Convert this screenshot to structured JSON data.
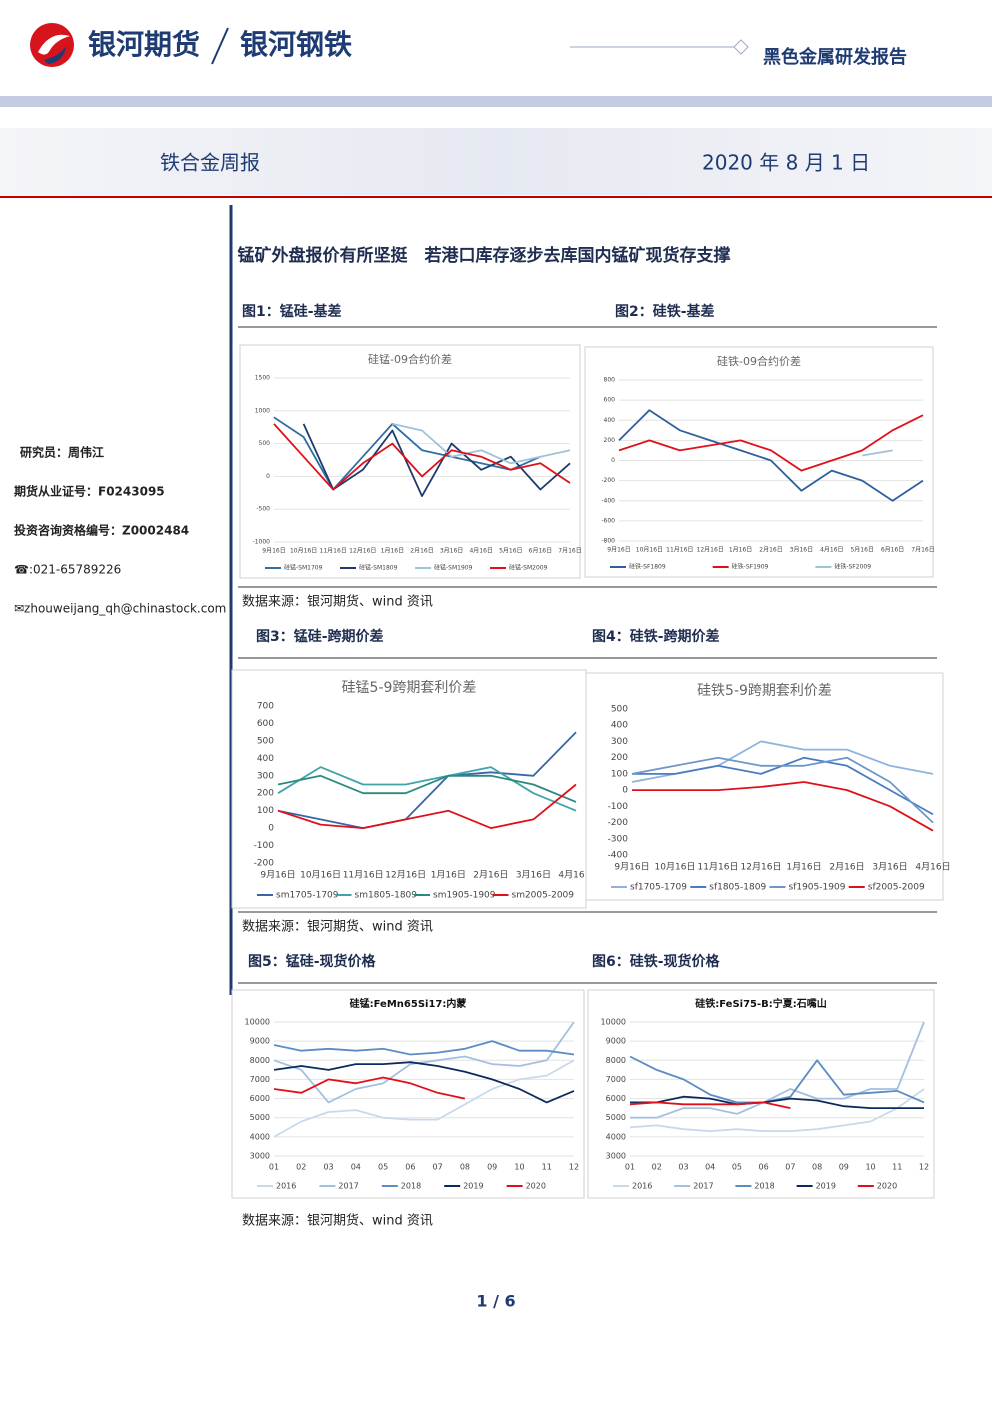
{
  "header": {
    "brand": "银河期货",
    "sub_brand": "银河钢铁",
    "report": "黑色金属研发报告",
    "title": "铁合金周报",
    "date": "2020 年 8 月 1 日"
  },
  "sidebar": [
    "研究员：周伟江",
    "期货从业证号：F0243095",
    "投资咨询资格编号：Z0002484",
    "☎:021-65789226",
    "✉zhouweijang_qh@chinastock.com"
  ],
  "headline": "锰矿外盘报价有所坚挺　若港口库存逐步去库国内锰矿现货存支撑",
  "figures": [
    {
      "caption": "图1：锰硅-基差",
      "chart": {
        "type": "line",
        "title": "硅锰-09合约价差",
        "grid": true,
        "categories": [
          "9月16日",
          "10月16日",
          "11月16日",
          "12月16日",
          "1月16日",
          "2月16日",
          "3月16日",
          "4月16日",
          "5月16日",
          "6月16日",
          "7月16日"
        ],
        "ylim": [
          -1000,
          1500
        ],
        "yticks": [
          -1000,
          -500,
          0,
          500,
          1000,
          1500
        ],
        "series": [
          {
            "name": "硅锰-SM1709",
            "color": "#2f6ea5",
            "values": [
              900,
              600,
              -200,
              300,
              800,
              400,
              300,
              200,
              100,
              300,
              null
            ]
          },
          {
            "name": "硅锰-SM1809",
            "color": "#1f3b6e",
            "values": [
              null,
              800,
              -200,
              100,
              700,
              -300,
              500,
              100,
              300,
              -200,
              200
            ]
          },
          {
            "name": "硅锰-SM1909",
            "color": "#9dc3d8",
            "values": [
              null,
              null,
              null,
              null,
              800,
              700,
              300,
              400,
              200,
              300,
              400
            ]
          },
          {
            "name": "硅锰-SM2009",
            "color": "#e0101a",
            "values": [
              800,
              300,
              -200,
              200,
              500,
              0,
              400,
              300,
              100,
              200,
              -100
            ]
          }
        ]
      }
    },
    {
      "caption": "图2：硅铁-基差",
      "chart": {
        "type": "line",
        "title": "硅铁-09合约价差",
        "grid": true,
        "categories": [
          "9月16日",
          "10月16日",
          "11月16日",
          "12月16日",
          "1月16日",
          "2月16日",
          "3月16日",
          "4月16日",
          "5月16日",
          "6月16日",
          "7月16日"
        ],
        "ylim": [
          -800,
          800
        ],
        "yticks": [
          -800,
          -600,
          -400,
          -200,
          0,
          200,
          400,
          600,
          800
        ],
        "series": [
          {
            "name": "硅铁-SF1809",
            "color": "#2f5f9e",
            "values": [
              200,
              500,
              300,
              200,
              100,
              0,
              -300,
              -100,
              -200,
              -400,
              -200
            ]
          },
          {
            "name": "硅铁-SF1909",
            "color": "#e0101a",
            "values": [
              100,
              200,
              100,
              150,
              200,
              100,
              -100,
              0,
              100,
              300,
              450
            ]
          },
          {
            "name": "硅铁-SF2009",
            "color": "#9dc3d8",
            "values": [
              null,
              null,
              null,
              null,
              null,
              null,
              null,
              null,
              50,
              100,
              null
            ]
          }
        ]
      }
    },
    {
      "caption": "图3：锰硅-跨期价差",
      "chart": {
        "type": "line",
        "title": "硅锰5-9跨期套利价差",
        "grid": false,
        "categories": [
          "9月16日",
          "10月16日",
          "11月16日",
          "12月16日",
          "1月16日",
          "2月16日",
          "3月16日",
          "4月16日"
        ],
        "ylim": [
          -200,
          700
        ],
        "yticks": [
          -200,
          -100,
          0,
          100,
          200,
          300,
          400,
          500,
          600,
          700
        ],
        "series": [
          {
            "name": "sm1705-1709",
            "color": "#3866a8",
            "values": [
              100,
              50,
              0,
              50,
              300,
              320,
              300,
              550
            ]
          },
          {
            "name": "sm1805-1809",
            "color": "#3fa3a8",
            "values": [
              200,
              350,
              250,
              250,
              300,
              350,
              200,
              100
            ]
          },
          {
            "name": "sm1905-1909",
            "color": "#2b8a7d",
            "values": [
              250,
              300,
              200,
              200,
              300,
              300,
              250,
              150
            ]
          },
          {
            "name": "sm2005-2009",
            "color": "#e0101a",
            "values": [
              100,
              20,
              0,
              50,
              100,
              0,
              50,
              250
            ]
          }
        ]
      }
    },
    {
      "caption": "图4：硅铁-跨期价差",
      "chart": {
        "type": "line",
        "title": "硅铁5-9跨期套利价差",
        "grid": false,
        "categories": [
          "9月16日",
          "10月16日",
          "11月16日",
          "12月16日",
          "1月16日",
          "2月16日",
          "3月16日",
          "4月16日"
        ],
        "ylim": [
          -400,
          500
        ],
        "yticks": [
          -400,
          -300,
          -200,
          -100,
          0,
          100,
          200,
          300,
          400,
          500
        ],
        "series": [
          {
            "name": "sf1705-1709",
            "color": "#8fb3dd",
            "values": [
              50,
              100,
              150,
              300,
              250,
              250,
              150,
              100
            ]
          },
          {
            "name": "sf1805-1809",
            "color": "#4a7cc0",
            "values": [
              100,
              100,
              150,
              100,
              200,
              150,
              0,
              -150
            ]
          },
          {
            "name": "sf1905-1909",
            "color": "#6d97c9",
            "values": [
              100,
              150,
              200,
              150,
              150,
              200,
              50,
              -200
            ]
          },
          {
            "name": "sf2005-2009",
            "color": "#e0101a",
            "values": [
              0,
              0,
              0,
              20,
              50,
              0,
              -100,
              -250
            ]
          }
        ]
      }
    },
    {
      "caption": "图5：锰硅-现货价格",
      "chart": {
        "type": "line",
        "title": "硅锰:FeMn65Si17:内蒙",
        "grid": true,
        "categories": [
          "01",
          "02",
          "03",
          "04",
          "05",
          "06",
          "07",
          "08",
          "09",
          "10",
          "11",
          "12"
        ],
        "ylim": [
          3000,
          10000
        ],
        "yticks": [
          3000,
          4000,
          5000,
          6000,
          7000,
          8000,
          9000,
          10000
        ],
        "series": [
          {
            "name": "2016",
            "color": "#c9d9ec",
            "values": [
              4000,
              4800,
              5300,
              5400,
              5000,
              4900,
              4900,
              5700,
              6500,
              7000,
              7200,
              8000
            ]
          },
          {
            "name": "2017",
            "color": "#a3c0e0",
            "values": [
              8000,
              7500,
              5800,
              6500,
              6800,
              7800,
              8000,
              8200,
              7800,
              7700,
              8000,
              10000
            ]
          },
          {
            "name": "2018",
            "color": "#5b8cc6",
            "values": [
              8800,
              8500,
              8600,
              8500,
              8600,
              8300,
              8400,
              8600,
              9000,
              8500,
              8500,
              8300
            ]
          },
          {
            "name": "2019",
            "color": "#0d2a5e",
            "values": [
              7500,
              7700,
              7500,
              7800,
              7800,
              7900,
              7700,
              7400,
              7000,
              6500,
              5800,
              6400
            ]
          },
          {
            "name": "2020",
            "color": "#e0101a",
            "values": [
              6500,
              6300,
              7000,
              6800,
              7100,
              6800,
              6300,
              6000,
              null,
              null,
              null,
              null
            ]
          }
        ]
      }
    },
    {
      "caption": "图6：硅铁-现货价格",
      "chart": {
        "type": "line",
        "title": "硅铁:FeSi75-B:宁夏:石嘴山",
        "grid": true,
        "categories": [
          "01",
          "02",
          "03",
          "04",
          "05",
          "06",
          "07",
          "08",
          "09",
          "10",
          "11",
          "12"
        ],
        "ylim": [
          3000,
          10000
        ],
        "yticks": [
          3000,
          4000,
          5000,
          6000,
          7000,
          8000,
          9000,
          10000
        ],
        "series": [
          {
            "name": "2016",
            "color": "#c9d9ec",
            "values": [
              4500,
              4600,
              4400,
              4300,
              4400,
              4300,
              4300,
              4400,
              4600,
              4800,
              5500,
              6500
            ]
          },
          {
            "name": "2017",
            "color": "#a3c0e0",
            "values": [
              5000,
              5000,
              5500,
              5500,
              5200,
              5800,
              6500,
              6000,
              6000,
              6500,
              6500,
              10000
            ]
          },
          {
            "name": "2018",
            "color": "#5b8cc6",
            "values": [
              8200,
              7500,
              7000,
              6200,
              5800,
              5800,
              6100,
              8000,
              6200,
              6300,
              6400,
              5800
            ]
          },
          {
            "name": "2019",
            "color": "#0d2a5e",
            "values": [
              5800,
              5800,
              6100,
              6000,
              5700,
              5800,
              6000,
              5900,
              5600,
              5500,
              5500,
              5500
            ]
          },
          {
            "name": "2020",
            "color": "#e0101a",
            "values": [
              5700,
              5800,
              5700,
              5700,
              5700,
              5800,
              5500,
              null,
              null,
              null,
              null,
              null
            ]
          }
        ]
      }
    }
  ],
  "sources": [
    "数据来源：银河期货、wind 资讯",
    "数据来源：银河期货、wind 资讯",
    "数据来源：银河期货、wind 资讯"
  ],
  "page": "1 / 6"
}
